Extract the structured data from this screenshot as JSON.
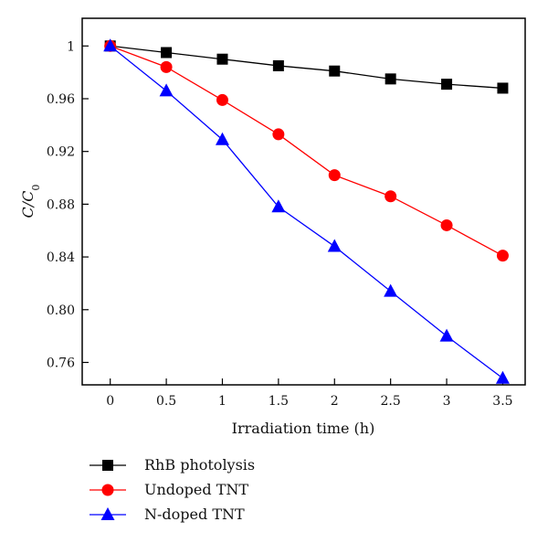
{
  "chart_data": {
    "type": "line",
    "title": "",
    "xlabel": "Irradiation time (h)",
    "ylabel_main": "C/C",
    "ylabel_sub": "0",
    "x": [
      0,
      0.5,
      1,
      1.5,
      2,
      2.5,
      3,
      3.5
    ],
    "x_tick_labels": [
      "0",
      "0.5",
      "1",
      "1.5",
      "2",
      "2.5",
      "3",
      "3.5"
    ],
    "y_ticks": [
      0.76,
      0.8,
      0.84,
      0.88,
      0.92,
      0.96,
      1.0
    ],
    "y_tick_labels": [
      "0.76",
      "0.80",
      "0.84",
      "0.88",
      "0.92",
      "0.96",
      "1"
    ],
    "xlim": [
      -0.25,
      3.7
    ],
    "ylim": [
      0.743,
      1.021
    ],
    "grid": false,
    "legend_placement": "below",
    "series": [
      {
        "name": "RhB photolysis",
        "color": "#000000",
        "marker": "square",
        "values": [
          1.0,
          0.995,
          0.99,
          0.985,
          0.981,
          0.975,
          0.971,
          0.968
        ]
      },
      {
        "name": "Undoped TNT",
        "color": "#ff0000",
        "marker": "circle",
        "values": [
          1.0,
          0.984,
          0.959,
          0.933,
          0.902,
          0.886,
          0.864,
          0.841
        ]
      },
      {
        "name": "N-doped TNT",
        "color": "#0000ff",
        "marker": "triangle",
        "values": [
          1.0,
          0.966,
          0.929,
          0.878,
          0.848,
          0.814,
          0.78,
          0.748
        ]
      }
    ]
  }
}
